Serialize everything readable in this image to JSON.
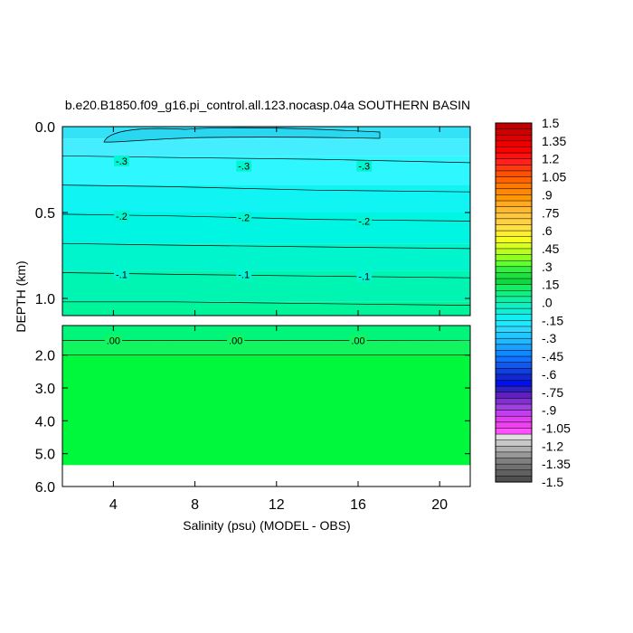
{
  "chart_data": {
    "type": "contour",
    "title": "b.e20.B1850.f09_g16.pi_control.all.123.nocasp.04a SOUTHERN BASIN",
    "xlabel": "Salinity (psu) (MODEL - OBS)",
    "ylabel": "DEPTH (km)",
    "xlim": [
      1.5,
      21.5
    ],
    "x_ticks": [
      "4",
      "8",
      "12",
      "16",
      "20"
    ],
    "upper_panel": {
      "ylim": [
        0.0,
        1.1
      ],
      "y_ticks": [
        "0.0",
        "0.5",
        "1.0"
      ]
    },
    "lower_panel": {
      "ylim": [
        1.1,
        6.0
      ],
      "y_ticks": [
        "2.0",
        "3.0",
        "4.0",
        "5.0",
        "6.0"
      ]
    },
    "contour_labels": [
      {
        "text": "-.3",
        "x": 4.4,
        "depth": 0.2
      },
      {
        "text": "-.3",
        "x": 10.4,
        "depth": 0.23
      },
      {
        "text": "-.3",
        "x": 16.3,
        "depth": 0.23
      },
      {
        "text": "-.2",
        "x": 4.4,
        "depth": 0.52
      },
      {
        "text": "-.2",
        "x": 10.4,
        "depth": 0.53
      },
      {
        "text": "-.2",
        "x": 16.3,
        "depth": 0.55
      },
      {
        "text": "-.1",
        "x": 4.4,
        "depth": 0.86
      },
      {
        "text": "-.1",
        "x": 10.4,
        "depth": 0.86
      },
      {
        "text": "-.1",
        "x": 16.3,
        "depth": 0.87
      },
      {
        "text": ".00",
        "x": 4.0,
        "depth": 1.55
      },
      {
        "text": ".00",
        "x": 10.0,
        "depth": 1.55
      },
      {
        "text": ".00",
        "x": 16.0,
        "depth": 1.55
      }
    ],
    "bands": [
      {
        "from": 0.0,
        "to": 0.07,
        "value": -0.375,
        "color": "#33e2f7"
      },
      {
        "from": 0.07,
        "to": 0.17,
        "value": -0.35,
        "color": "#44eeff"
      },
      {
        "from": 0.17,
        "to": 0.34,
        "value": -0.275,
        "color": "#2ff7ff"
      },
      {
        "from": 0.34,
        "to": 0.5,
        "value": -0.225,
        "color": "#10f4f4"
      },
      {
        "from": 0.5,
        "to": 0.68,
        "value": -0.175,
        "color": "#00f5e2"
      },
      {
        "from": 0.68,
        "to": 0.84,
        "value": -0.125,
        "color": "#00f5cc"
      },
      {
        "from": 0.84,
        "to": 1.02,
        "value": -0.075,
        "color": "#00f5b3"
      },
      {
        "from": 1.02,
        "to": 1.1,
        "value": -0.025,
        "color": "#00f59a"
      },
      {
        "from": 1.1,
        "to": 1.55,
        "value": -0.01,
        "color": "#00f57a"
      },
      {
        "from": 1.55,
        "to": 2.0,
        "value": 0.0,
        "color": "#10f560"
      },
      {
        "from": 2.0,
        "to": 5.35,
        "value": 0.0,
        "color": "#00f83c"
      }
    ],
    "bottom_depth": 5.35,
    "colorbar": {
      "labels": [
        "1.5",
        "1.35",
        "1.2",
        "1.05",
        ".9",
        ".75",
        ".6",
        ".45",
        ".3",
        ".15",
        ".0",
        "-.15",
        "-.3",
        "-.45",
        "-.6",
        "-.75",
        "-.9",
        "-1.05",
        "-1.2",
        "-1.35",
        "-1.5"
      ],
      "colors": [
        "#c00000",
        "#d00000",
        "#e00000",
        "#ee0000",
        "#ff0000",
        "#ff1010",
        "#ff2020",
        "#ff3a10",
        "#ff5000",
        "#ff6400",
        "#ff7800",
        "#ff8800",
        "#ff9800",
        "#ffa820",
        "#ffb830",
        "#ffc840",
        "#ffd040",
        "#ffe040",
        "#ffee30",
        "#f4ff20",
        "#d8ff20",
        "#b8ff20",
        "#90ff20",
        "#60ff30",
        "#30f040",
        "#20e040",
        "#10d840",
        "#10f060",
        "#10f080",
        "#10f0a0",
        "#10f0c0",
        "#10f0d8",
        "#10f0f0",
        "#20e8ff",
        "#30d8ff",
        "#20c8ff",
        "#20b8ff",
        "#1aa0ff",
        "#1088ff",
        "#1070ff",
        "#1058f0",
        "#1040e0",
        "#1028d0",
        "#0010ee",
        "#3020c0",
        "#6020c0",
        "#8030d0",
        "#a040e0",
        "#c040f0",
        "#e040f0",
        "#f040f0",
        "#ff50ff",
        "#e0e0e0",
        "#c8c8c8",
        "#b0b0b0",
        "#989898",
        "#808080",
        "#707070",
        "#606060",
        "#505050"
      ]
    }
  }
}
